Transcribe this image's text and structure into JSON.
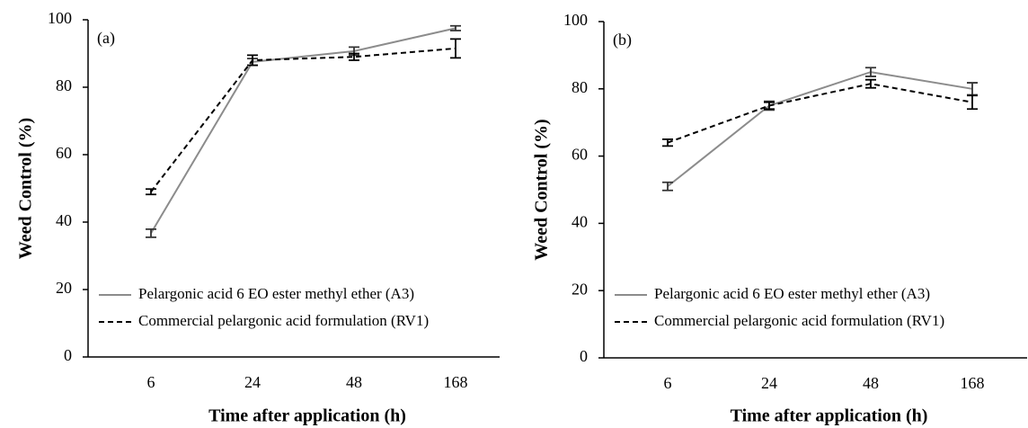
{
  "chart_data": [
    {
      "type": "line",
      "label": "(a)",
      "x_label": "Time after application (h)",
      "y_label": "Weed Control (%)",
      "categories": [
        "6",
        "24",
        "48",
        "168"
      ],
      "ylim": [
        0,
        100
      ],
      "yticks": [
        0,
        20,
        40,
        60,
        80,
        100
      ],
      "series": [
        {
          "name": "Pelargonic acid 6 EO ester methyl ether (A3)",
          "color": "#8c8c8c",
          "linestyle": "solid",
          "values": [
            36.7,
            87.5,
            90.7,
            97.5
          ],
          "errors": [
            1.2,
            1.0,
            1.2,
            0.7
          ]
        },
        {
          "name": "Commercial pelargonic acid formulation (RV1)",
          "color": "#000000",
          "linestyle": "dashed",
          "values": [
            49,
            88,
            89,
            91.5
          ],
          "errors": [
            0.8,
            1.5,
            1.0,
            2.8
          ]
        }
      ]
    },
    {
      "type": "line",
      "label": "(b)",
      "x_label": "Time after application (h)",
      "y_label": "Weed Control (%)",
      "categories": [
        "6",
        "24",
        "48",
        "168"
      ],
      "ylim": [
        0,
        100
      ],
      "yticks": [
        0,
        20,
        40,
        60,
        80,
        100
      ],
      "series": [
        {
          "name": "Pelargonic acid 6 EO ester methyl ether (A3)",
          "color": "#8c8c8c",
          "linestyle": "solid",
          "values": [
            51,
            75,
            85,
            80
          ],
          "errors": [
            1.2,
            1.3,
            1.3,
            1.8
          ]
        },
        {
          "name": "Commercial pelargonic acid formulation (RV1)",
          "color": "#000000",
          "linestyle": "dashed",
          "values": [
            64,
            75,
            81.5,
            76
          ],
          "errors": [
            1.0,
            1.0,
            1.2,
            2.0
          ]
        }
      ]
    }
  ]
}
